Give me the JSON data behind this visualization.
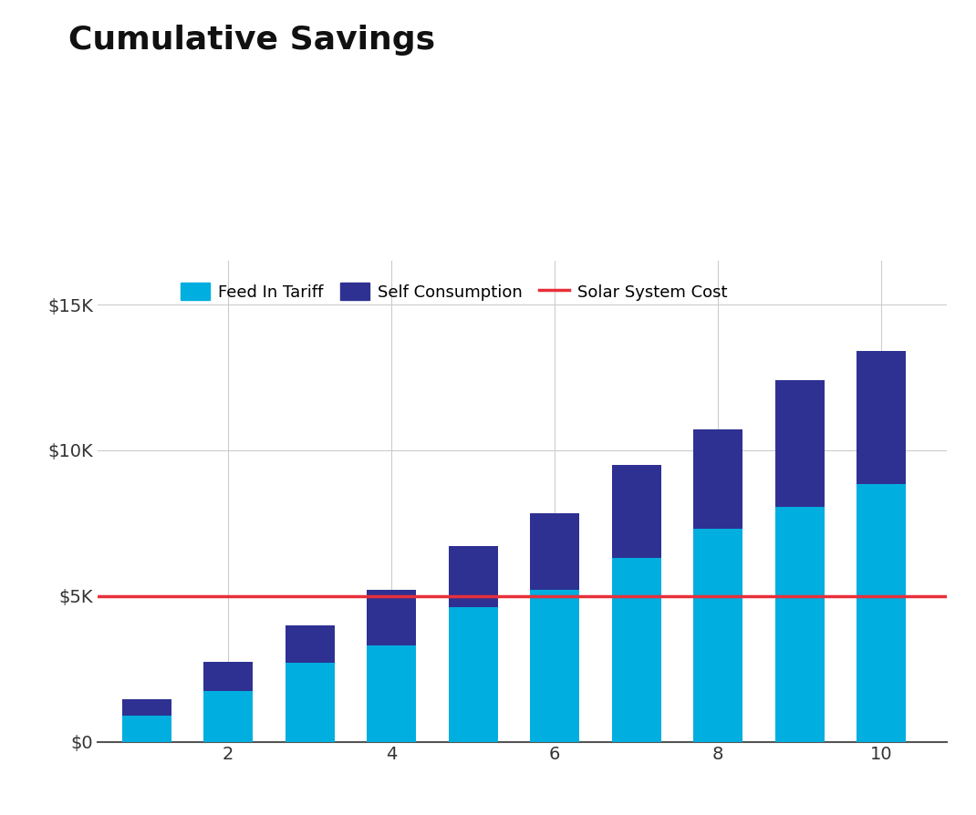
{
  "title": "Cumulative Savings",
  "years": [
    1,
    2,
    3,
    4,
    5,
    6,
    7,
    8,
    9,
    10
  ],
  "feed_in_tariff": [
    900,
    1750,
    2700,
    3300,
    4600,
    5200,
    6300,
    7300,
    8050,
    8850
  ],
  "self_consumption": [
    550,
    1000,
    1300,
    1900,
    2100,
    2650,
    3200,
    3400,
    4350,
    4550
  ],
  "solar_system_cost": 5000,
  "fit_color": "#00AEDF",
  "sc_color": "#2E3192",
  "cost_line_color": "#E8303A",
  "background_color": "#FFFFFF",
  "grid_color": "#CCCCCC",
  "ytick_labels": [
    "$0",
    "$5K",
    "$10K",
    "$15K"
  ],
  "ytick_values": [
    0,
    5000,
    10000,
    15000
  ],
  "xtick_values": [
    2,
    4,
    6,
    8,
    10
  ],
  "title_fontsize": 26,
  "legend_fontsize": 13,
  "tick_fontsize": 14,
  "bar_width": 0.6,
  "ylim": [
    0,
    16500
  ],
  "legend_fit_label": "Feed In Tariff",
  "legend_sc_label": "Self Consumption",
  "legend_cost_label": "Solar System Cost"
}
